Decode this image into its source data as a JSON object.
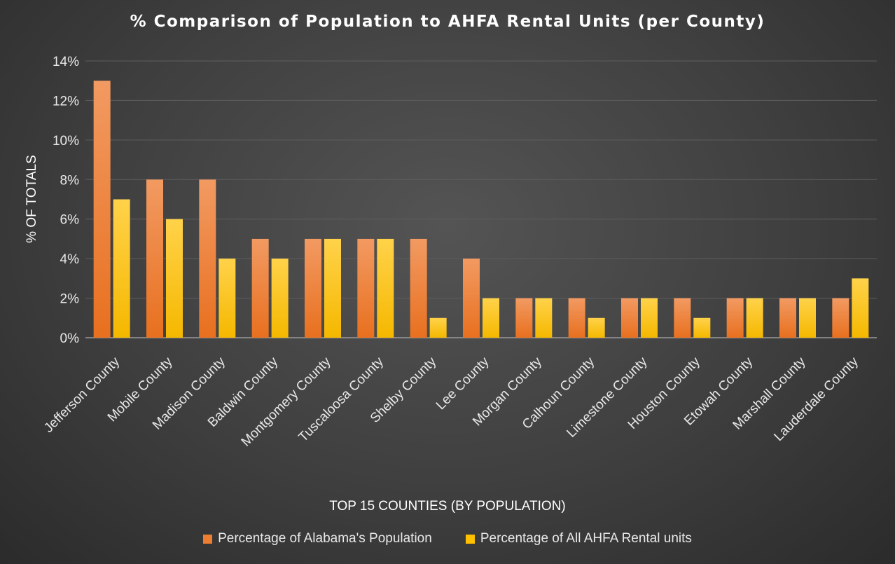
{
  "chart_data": {
    "type": "bar",
    "title": "% Comparison of Population to AHFA Rental Units (per County)",
    "xlabel": "TOP  15 COUNTIES (BY POPULATION)",
    "ylabel": "% OF TOTALS",
    "ylim": [
      0,
      14
    ],
    "yticks": [
      "0%",
      "2%",
      "4%",
      "6%",
      "8%",
      "10%",
      "12%",
      "14%"
    ],
    "grid": true,
    "legend_position": "bottom",
    "categories": [
      "Jefferson County",
      "Mobile County",
      "Madison County",
      "Baldwin County",
      "Montgomery County",
      "Tuscaloosa County",
      "Shelby County",
      "Lee County",
      "Morgan County",
      "Calhoun County",
      "Limestone County",
      "Houston County",
      "Etowah County",
      "Marshall County",
      "Lauderdale County"
    ],
    "series": [
      {
        "name": "Percentage of Alabama's Population",
        "color": "#ed7d31",
        "values": [
          13,
          8,
          8,
          5,
          5,
          5,
          5,
          4,
          2,
          2,
          2,
          2,
          2,
          2,
          2
        ]
      },
      {
        "name": "Percentage of All AHFA Rental units",
        "color": "#ffc000",
        "values": [
          7,
          6,
          4,
          4,
          5,
          5,
          1,
          2,
          2,
          1,
          2,
          1,
          2,
          2,
          3
        ]
      }
    ]
  }
}
